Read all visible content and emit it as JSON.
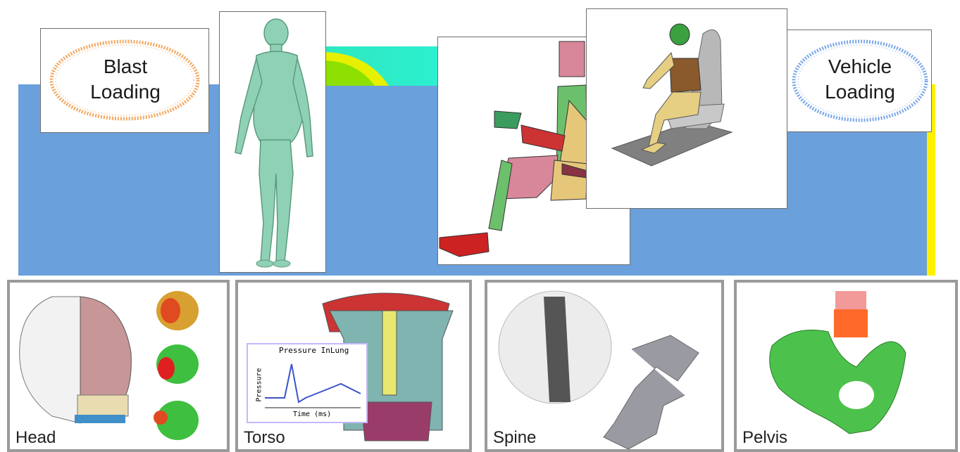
{
  "top": {
    "blast_label_line1": "Blast",
    "blast_label_line2": "Loading",
    "vehicle_label_line1": "Vehicle",
    "vehicle_label_line2": "Loading"
  },
  "panels": [
    {
      "label": "Head"
    },
    {
      "label": "Torso",
      "inset_title": "Pressure InLung",
      "inset_ylabel": "Pressure",
      "inset_xlabel": "Time (ms)"
    },
    {
      "label": "Spine"
    },
    {
      "label": "Pelvis"
    }
  ],
  "colors": {
    "band_blue": "#6aa0dc",
    "accent_yellow": "#fff000",
    "body_green": "#7fc9a8",
    "mesh_green": "#3fbf3f",
    "blast_ring": "#f3a860",
    "vehicle_ring": "#7aa8e8"
  }
}
